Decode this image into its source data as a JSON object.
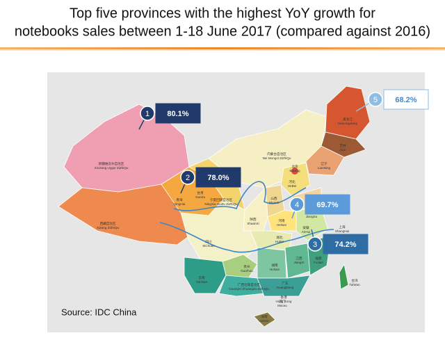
{
  "header": {
    "title_lines": [
      "Top five provinces with the highest YoY growth for",
      "notebooks sales between 1-18 June 2017 (compared against 2016)"
    ]
  },
  "callouts": [
    {
      "rank": 1,
      "text": "80.1%"
    },
    {
      "rank": 2,
      "text": "78.0%"
    },
    {
      "rank": 3,
      "text": "74.2%"
    },
    {
      "rank": 4,
      "text": "69.7%"
    },
    {
      "rank": 5,
      "text": "68.2%"
    }
  ],
  "regions": [
    {
      "zh": "新疆维吾尔自治区",
      "en": "XinJiang Uygur ZiZhiQu"
    },
    {
      "zh": "西藏自治区",
      "en": "XiZang ZiZhiQu"
    },
    {
      "zh": "青海",
      "en": "QingHai"
    },
    {
      "zh": "甘肃",
      "en": "GanSu"
    },
    {
      "zh": "宁夏回族自治区",
      "en": "NingXia HuiZu ZiZhiQu"
    },
    {
      "zh": "内蒙古自治区",
      "en": "Nei Mongol ZiZhiQu"
    },
    {
      "zh": "黑龙江",
      "en": "HeiLongJiang"
    },
    {
      "zh": "吉林",
      "en": "JiLin"
    },
    {
      "zh": "辽宁",
      "en": "LiaoNing"
    },
    {
      "zh": "北京",
      "en": "BeiJing"
    },
    {
      "zh": "河北",
      "en": "HeBei"
    },
    {
      "zh": "山西",
      "en": "ShanXi"
    },
    {
      "zh": "陕西",
      "en": "ShaanXi"
    },
    {
      "zh": "河南",
      "en": "HeNan"
    },
    {
      "zh": "湖北",
      "en": "HuBei"
    },
    {
      "zh": "安徽",
      "en": "AnHui"
    },
    {
      "zh": "江苏",
      "en": "JiangSu"
    },
    {
      "zh": "上海",
      "en": "ShangHai"
    },
    {
      "zh": "四川",
      "en": "SiChuan"
    },
    {
      "zh": "贵州",
      "en": "GuiZhou"
    },
    {
      "zh": "湖南",
      "en": "HuNan"
    },
    {
      "zh": "江西",
      "en": "JiangXi"
    },
    {
      "zh": "福建",
      "en": "FuJian"
    },
    {
      "zh": "云南",
      "en": "YunNan"
    },
    {
      "zh": "广西壮族自治区",
      "en": "GuangXi ZhuangZu ZiZhiQu"
    },
    {
      "zh": "广东",
      "en": "GuangDong"
    },
    {
      "zh": "香港",
      "en": "Hong Kong"
    },
    {
      "zh": "澳门",
      "en": "Macau"
    },
    {
      "zh": "台湾",
      "en": "TaiWan"
    },
    {
      "zh": "海南",
      "en": "HaiNan"
    }
  ],
  "source": "Source: IDC China"
}
